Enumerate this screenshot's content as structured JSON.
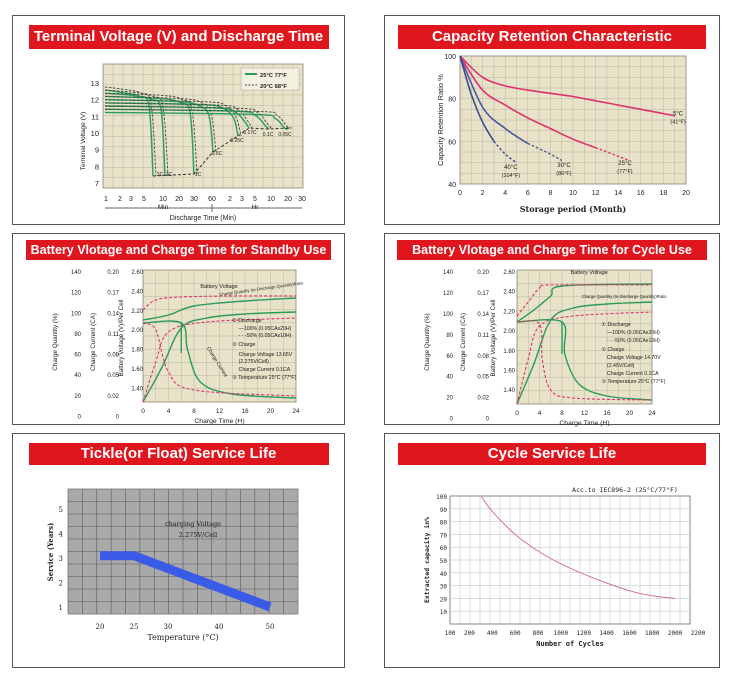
{
  "colors": {
    "title_red": "#e0161f",
    "green": "#2a9b5a",
    "pink": "#e0306e",
    "grid_bg": "#e7e2c8",
    "grid_line": "#b0ab95",
    "dark": "#222222",
    "blue": "#3a5be8",
    "gray_grid": "#bdbdbd"
  },
  "chart_data": [
    {
      "id": "terminal",
      "type": "line",
      "title": "Terminal Voltage (V) and Discharge Time",
      "ylabel": "Terminal Voltage (V)",
      "xlabel": "Discharge Time (Min)",
      "y_ticks": [
        "13",
        "12",
        "11",
        "10",
        "9",
        "8",
        "7"
      ],
      "x_ticks": [
        "1",
        "2",
        "3",
        "5",
        "10",
        "20",
        "30",
        "60",
        "2",
        "3",
        "5",
        "10",
        "20",
        "30"
      ],
      "x_group_min": "Min",
      "x_group_hr": "Hr",
      "legend": [
        {
          "label": "25°C 77°F",
          "style": "green-solid"
        },
        {
          "label": "20°C 68°F",
          "style": "dashed"
        }
      ],
      "curve_labels": [
        "3C",
        "2C",
        "1C",
        "0.6C",
        "0.25C",
        "0.17C",
        "0.1C",
        "0.05C"
      ]
    },
    {
      "id": "capacity",
      "type": "line",
      "title": "Capacity Retention Characteristic",
      "ylabel": "Capacity Retention Ratio %",
      "xlabel": "Storage period (Month)",
      "xlim": [
        0,
        20
      ],
      "ylim": [
        40,
        100
      ],
      "x_ticks": [
        "0",
        "2",
        "4",
        "6",
        "8",
        "10",
        "12",
        "14",
        "16",
        "18",
        "20"
      ],
      "y_ticks": [
        "100",
        "80",
        "60",
        "40"
      ],
      "series": [
        {
          "name": "5°C (41°F)",
          "points": [
            [
              0,
              100
            ],
            [
              2,
              90
            ],
            [
              4,
              86
            ],
            [
              6,
              84
            ],
            [
              8,
              82.5
            ],
            [
              10,
              81
            ],
            [
              12,
              79
            ],
            [
              14,
              77
            ],
            [
              16,
              75
            ],
            [
              18,
              73
            ],
            [
              19,
              72
            ]
          ]
        },
        {
          "name": "25°C (77°F)",
          "points": [
            [
              0,
              100
            ],
            [
              2,
              84
            ],
            [
              4,
              77
            ],
            [
              6,
              71
            ],
            [
              8,
              66
            ],
            [
              10,
              61
            ],
            [
              12,
              57
            ],
            [
              14,
              53
            ],
            [
              15,
              51
            ]
          ]
        },
        {
          "name": "30°C (86°F)",
          "points": [
            [
              0,
              100
            ],
            [
              2,
              76
            ],
            [
              4,
              66
            ],
            [
              6,
              59
            ],
            [
              8,
              54
            ],
            [
              9,
              51
            ]
          ]
        },
        {
          "name": "40°C (104°F)",
          "points": [
            [
              0,
              100
            ],
            [
              1,
              82
            ],
            [
              2,
              69
            ],
            [
              3,
              60
            ],
            [
              4,
              54
            ],
            [
              5,
              50
            ]
          ]
        }
      ],
      "series_labels": [
        {
          "name": "5°C",
          "sub": "(41°F)"
        },
        {
          "name": "25°C",
          "sub": "(77°F)"
        },
        {
          "name": "30°C",
          "sub": "(86°F)"
        },
        {
          "name": "40°C",
          "sub": "(104°F)"
        }
      ]
    },
    {
      "id": "standby",
      "type": "line",
      "title": "Battery Vlotage and Charge Time for Standby Use",
      "axis_labels": [
        "Charge Quantity (%)",
        "Charge Current (CA)",
        "Battery Voltage (V)/Per Cell"
      ],
      "xlabel": "Charge Time (H)",
      "x_ticks": [
        "0",
        "4",
        "8",
        "12",
        "16",
        "20",
        "24"
      ],
      "y1_ticks": [
        "140",
        "120",
        "100",
        "80",
        "60",
        "40",
        "20",
        "0"
      ],
      "y2_ticks": [
        "0.20",
        "0.17",
        "0.14",
        "0.11",
        "0.08",
        "0.05",
        "0.02",
        "0"
      ],
      "y3_ticks": [
        "2.60",
        "2.40",
        "2.20",
        "2.00",
        "1.80",
        "1.60",
        "1.40"
      ],
      "notes": [
        "Battery Voltage",
        "Charge Quantity (to-Discharge Quantity)Ratio",
        "Charge Current",
        "① Discharge",
        "—100% (0.05CAx20H)",
        "- - -50% (0.05CAx10H)",
        "② Charge",
        "Charge Voltage 13.65V",
        "(2.275V/Cell)",
        "Charge Current 0.1CA",
        "③ Temperature 25°C (77°F)"
      ]
    },
    {
      "id": "cycle",
      "type": "line",
      "title": "Battery Vlotage and Charge Time for Cycle Use",
      "axis_labels": [
        "Charge Quantity (%)",
        "Charge Current (CA)",
        "Battery Voltage (V)/Per Cell"
      ],
      "xlabel": "Charge Time (H)",
      "x_ticks": [
        "0",
        "4",
        "8",
        "12",
        "16",
        "20",
        "24"
      ],
      "y1_ticks": [
        "140",
        "120",
        "100",
        "80",
        "60",
        "40",
        "20",
        "0"
      ],
      "y2_ticks": [
        "0.20",
        "0.17",
        "0.14",
        "0.11",
        "0.08",
        "0.05",
        "0.02",
        "0"
      ],
      "y3_ticks": [
        "2.60",
        "2.40",
        "2.20",
        "2.00",
        "1.80",
        "1.60",
        "1.40"
      ],
      "notes": [
        "Battery Voltage",
        "Charge Quantity (to-Discharge Quantity)Ratio",
        "① Discharge",
        "—100% (0.05CAx20H)",
        "- - -50% (0.05CAx10H)",
        "② Charge",
        "Charge Voltage 14.70V",
        "(2.45V/Cell)",
        "Charge Current 0.1CA",
        "③ Temperature 25°C (77°F)"
      ]
    },
    {
      "id": "float",
      "type": "line",
      "title": "Tickle(or Float) Service Life",
      "ylabel": "Service (Years)",
      "xlabel": "Temperature (°C)",
      "x_ticks": [
        "20",
        "25",
        "30",
        "40",
        "50"
      ],
      "y_ticks": [
        "1",
        "2",
        "3",
        "4",
        "5"
      ],
      "annotation": [
        "charging Voltage",
        "2.275V/Cell"
      ],
      "series": [
        {
          "name": "service life",
          "points": [
            [
              20,
              3.1
            ],
            [
              25,
              3.1
            ],
            [
              50,
              1.0
            ]
          ]
        }
      ]
    },
    {
      "id": "cyclelife",
      "type": "line",
      "title": "Cycle Service Life",
      "ylabel": "Extracted capacity in%",
      "xlabel": "Number of Cycles",
      "note": "Acc.to IEC896-2 (25°C/77°F)",
      "x_ticks": [
        "100",
        "200",
        "400",
        "600",
        "800",
        "1000",
        "1200",
        "1400",
        "1600",
        "1800",
        "2000",
        "2200"
      ],
      "y_ticks": [
        "100",
        "90",
        "80",
        "70",
        "60",
        "50",
        "40",
        "30",
        "20",
        "10"
      ],
      "series": [
        {
          "name": "capacity",
          "points": [
            [
              300,
              100
            ],
            [
              400,
              88
            ],
            [
              600,
              70
            ],
            [
              800,
              57
            ],
            [
              1000,
              47
            ],
            [
              1200,
              39
            ],
            [
              1400,
              32
            ],
            [
              1600,
              26
            ],
            [
              1800,
              22
            ],
            [
              2000,
              20
            ]
          ]
        }
      ]
    }
  ]
}
